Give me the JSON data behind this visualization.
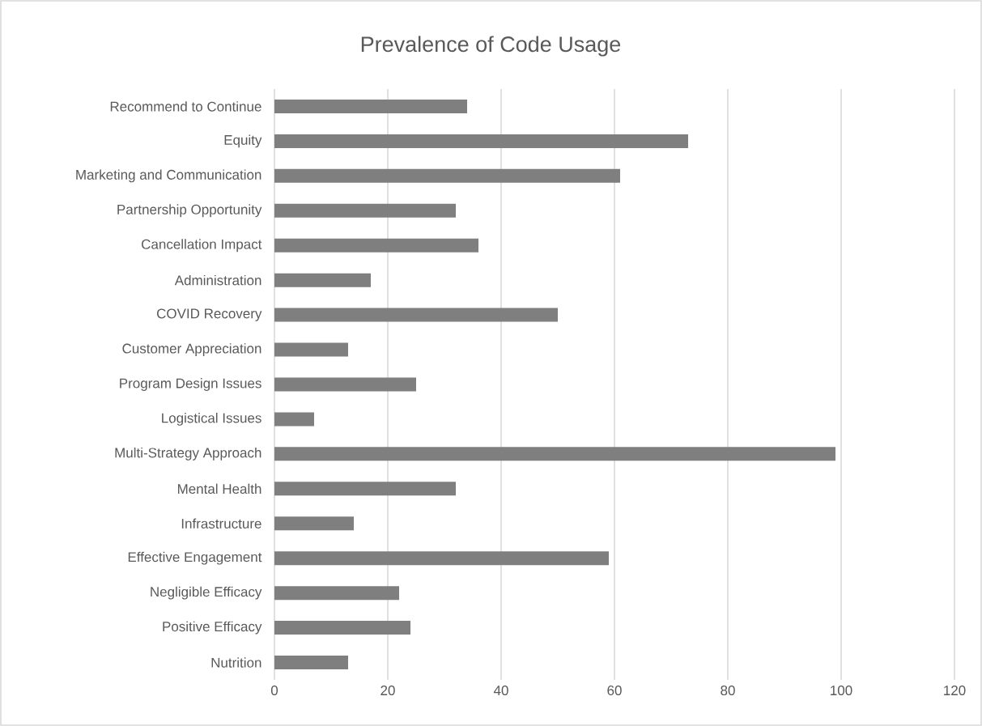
{
  "chart_data": {
    "type": "bar",
    "orientation": "horizontal",
    "title": "Prevalence of Code Usage",
    "categories": [
      "Recommend to Continue",
      "Equity",
      "Marketing and Communication",
      "Partnership Opportunity",
      "Cancellation Impact",
      "Administration",
      "COVID Recovery",
      "Customer Appreciation",
      "Program Design Issues",
      "Logistical Issues",
      "Multi-Strategy Approach",
      "Mental Health",
      "Infrastructure",
      "Effective Engagement",
      "Negligible Efficacy",
      "Positive Efficacy",
      "Nutrition"
    ],
    "values": [
      34,
      73,
      61,
      32,
      36,
      17,
      50,
      13,
      25,
      7,
      99,
      32,
      14,
      59,
      22,
      24,
      13
    ],
    "color": "#7f7f7f",
    "xlim": [
      0,
      120
    ],
    "xticks": [
      0,
      20,
      40,
      60,
      80,
      100,
      120
    ],
    "grid": "x"
  }
}
